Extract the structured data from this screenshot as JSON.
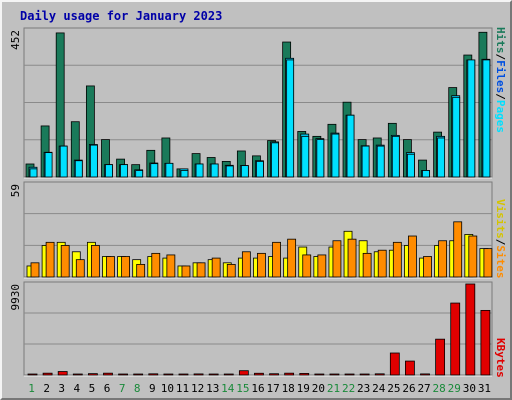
{
  "title": "Daily usage for January 2023",
  "colors": {
    "background": "#c0c0c0",
    "plot_bg": "#c0c0c0",
    "hits": "#1a7a5a",
    "files": "#00c8f0",
    "pages": "#00e0ff",
    "visits": "#ffff00",
    "sites": "#ff8c00",
    "kbytes": "#e00000",
    "title": "#0000a8",
    "weekend_day": "#1a8a3a"
  },
  "chart_data": [
    {
      "type": "bar",
      "name": "hits-files-pages",
      "ymax_label": "452",
      "ylim": [
        0,
        452
      ],
      "legend": [
        "Hits",
        "Files",
        "Pages"
      ],
      "categories": [
        "1",
        "2",
        "3",
        "4",
        "5",
        "6",
        "7",
        "8",
        "9",
        "10",
        "11",
        "12",
        "13",
        "14",
        "15",
        "16",
        "17",
        "18",
        "19",
        "20",
        "21",
        "22",
        "23",
        "24",
        "25",
        "26",
        "27",
        "28",
        "29",
        "30",
        "31"
      ],
      "series": [
        {
          "name": "Hits",
          "values": [
            40,
            157,
            443,
            170,
            280,
            115,
            55,
            38,
            82,
            120,
            25,
            72,
            60,
            48,
            80,
            65,
            112,
            415,
            140,
            125,
            162,
            230,
            115,
            120,
            165,
            115,
            52,
            138,
            275,
            375,
            445
          ]
        },
        {
          "name": "Files",
          "values": [
            30,
            76,
            95,
            52,
            100,
            38,
            38,
            22,
            43,
            42,
            25,
            40,
            40,
            36,
            35,
            50,
            108,
            365,
            132,
            118,
            135,
            190,
            96,
            98,
            128,
            75,
            20,
            125,
            250,
            360,
            362
          ]
        },
        {
          "name": "Pages",
          "values": [
            25,
            75,
            95,
            50,
            98,
            38,
            38,
            20,
            41,
            42,
            20,
            40,
            40,
            34,
            35,
            48,
            105,
            360,
            125,
            115,
            132,
            190,
            95,
            95,
            125,
            70,
            20,
            120,
            245,
            360,
            360
          ]
        }
      ]
    },
    {
      "type": "bar",
      "name": "visits-sites",
      "ymax_label": "59",
      "ylim": [
        0,
        59
      ],
      "legend": [
        "Visits",
        "Sites"
      ],
      "categories": [
        "1",
        "2",
        "3",
        "4",
        "5",
        "6",
        "7",
        "8",
        "9",
        "10",
        "11",
        "12",
        "13",
        "14",
        "15",
        "16",
        "17",
        "18",
        "19",
        "20",
        "21",
        "22",
        "23",
        "24",
        "25",
        "26",
        "27",
        "28",
        "29",
        "30",
        "31"
      ],
      "series": [
        {
          "name": "Visits",
          "values": [
            7,
            20,
            22,
            16,
            22,
            13,
            13,
            11,
            13,
            12,
            7,
            9,
            11,
            9,
            12,
            12,
            13,
            12,
            19,
            13,
            19,
            29,
            23,
            16,
            17,
            20,
            12,
            20,
            23,
            27,
            18
          ]
        },
        {
          "name": "Sites",
          "values": [
            9,
            22,
            20,
            11,
            20,
            13,
            13,
            8,
            15,
            14,
            7,
            9,
            12,
            8,
            16,
            15,
            22,
            24,
            14,
            14,
            23,
            24,
            15,
            17,
            22,
            26,
            13,
            23,
            35,
            26,
            18
          ]
        }
      ]
    },
    {
      "type": "bar",
      "name": "kbytes",
      "ymax_label": "9930",
      "ylim": [
        0,
        9930
      ],
      "legend": [
        "KBytes"
      ],
      "categories": [
        "1",
        "2",
        "3",
        "4",
        "5",
        "6",
        "7",
        "8",
        "9",
        "10",
        "11",
        "12",
        "13",
        "14",
        "15",
        "16",
        "17",
        "18",
        "19",
        "20",
        "21",
        "22",
        "23",
        "24",
        "25",
        "26",
        "27",
        "28",
        "29",
        "30",
        "31"
      ],
      "series": [
        {
          "name": "KBytes",
          "values": [
            90,
            200,
            380,
            90,
            150,
            200,
            100,
            90,
            130,
            40,
            40,
            120,
            100,
            80,
            470,
            190,
            140,
            200,
            170,
            100,
            100,
            80,
            80,
            130,
            2400,
            1520,
            120,
            3910,
            7850,
            9930,
            7050
          ]
        }
      ]
    }
  ],
  "weekend_days": [
    1,
    7,
    8,
    14,
    15,
    21,
    22,
    28,
    29
  ]
}
